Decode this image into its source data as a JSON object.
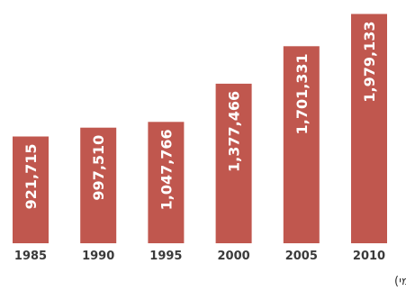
{
  "chart_data": {
    "type": "bar",
    "categories": [
      "1985",
      "1990",
      "1995",
      "2000",
      "2005",
      "2010"
    ],
    "values": [
      921715,
      997510,
      1047766,
      1377466,
      1701331,
      1979133
    ],
    "value_labels": [
      "921,715",
      "997,510",
      "1,047,766",
      "1,377,466",
      "1,701,331",
      "1,979,133"
    ],
    "ylim": [
      0,
      2100000
    ],
    "grid": false,
    "bar_color": "#c0574e",
    "title": "",
    "xlabel": "",
    "ylabel": ""
  },
  "source": "מקור: WIPO (ארגון הקניין הרוחני הבינלאומי)"
}
